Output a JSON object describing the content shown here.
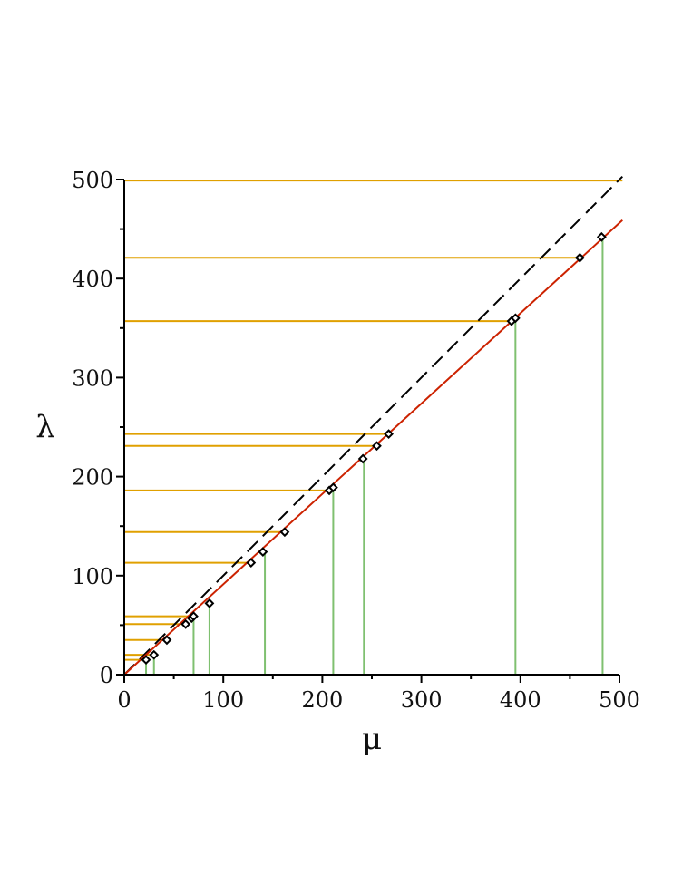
{
  "chart_data": {
    "type": "scatter",
    "title": "",
    "xlabel": "μ",
    "ylabel": "λ",
    "xlim": [
      0,
      500
    ],
    "ylim": [
      0,
      500
    ],
    "x_ticks": [
      0,
      100,
      200,
      300,
      400,
      500
    ],
    "y_ticks": [
      0,
      100,
      200,
      300,
      400,
      500
    ],
    "grid": false,
    "legend": "none",
    "colors": {
      "fit_line": "#cc2200",
      "diagonal": "#000000",
      "horizontal_lines": "#e0a000",
      "vertical_lines": "#7fc070",
      "markers": "#000000"
    },
    "diagonal_line": {
      "style": "dashed",
      "points": [
        [
          0,
          0
        ],
        [
          503,
          503
        ]
      ]
    },
    "fit_line": {
      "style": "solid",
      "points": [
        [
          0,
          0
        ],
        [
          503,
          459
        ]
      ]
    },
    "points": [
      {
        "x": 22,
        "y": 15
      },
      {
        "x": 30,
        "y": 20
      },
      {
        "x": 43,
        "y": 35
      },
      {
        "x": 62,
        "y": 51
      },
      {
        "x": 68,
        "y": 57
      },
      {
        "x": 70,
        "y": 59
      },
      {
        "x": 86,
        "y": 72
      },
      {
        "x": 128,
        "y": 113
      },
      {
        "x": 140,
        "y": 124
      },
      {
        "x": 162,
        "y": 144
      },
      {
        "x": 207,
        "y": 186
      },
      {
        "x": 211,
        "y": 189
      },
      {
        "x": 241,
        "y": 218
      },
      {
        "x": 255,
        "y": 231
      },
      {
        "x": 267,
        "y": 243
      },
      {
        "x": 391,
        "y": 357
      },
      {
        "x": 395,
        "y": 360
      },
      {
        "x": 460,
        "y": 421
      },
      {
        "x": 482,
        "y": 442
      }
    ],
    "horizontal_lines": [
      {
        "y": 15,
        "x_end": 22
      },
      {
        "y": 20,
        "x_end": 30
      },
      {
        "y": 35,
        "x_end": 43
      },
      {
        "y": 51,
        "x_end": 62
      },
      {
        "y": 59,
        "x_end": 70
      },
      {
        "y": 113,
        "x_end": 128
      },
      {
        "y": 144,
        "x_end": 162
      },
      {
        "y": 186,
        "x_end": 207
      },
      {
        "y": 231,
        "x_end": 255
      },
      {
        "y": 243,
        "x_end": 267
      },
      {
        "y": 357,
        "x_end": 391
      },
      {
        "y": 421,
        "x_end": 460
      },
      {
        "y": 499,
        "x_end": 503
      }
    ],
    "vertical_lines": [
      {
        "x": 22,
        "y_end": 15
      },
      {
        "x": 30,
        "y_end": 20
      },
      {
        "x": 70,
        "y_end": 59
      },
      {
        "x": 86,
        "y_end": 72
      },
      {
        "x": 142,
        "y_end": 126
      },
      {
        "x": 211,
        "y_end": 189
      },
      {
        "x": 242,
        "y_end": 219
      },
      {
        "x": 395,
        "y_end": 360
      },
      {
        "x": 483,
        "y_end": 442
      }
    ]
  }
}
